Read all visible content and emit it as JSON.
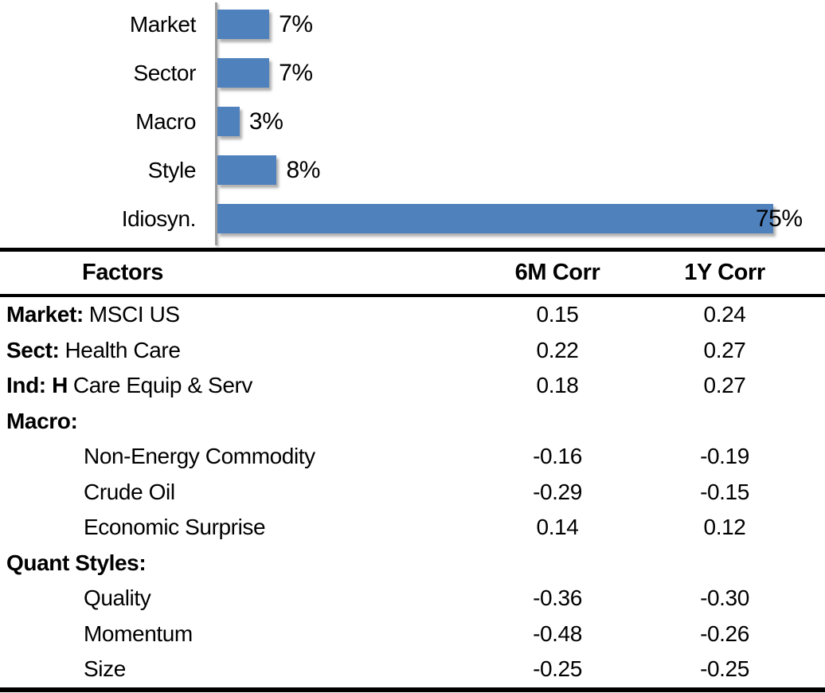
{
  "chart_data": [
    {
      "type": "bar",
      "orientation": "horizontal",
      "title": "",
      "xlabel": "",
      "ylabel": "",
      "categories": [
        "Market",
        "Sector",
        "Macro",
        "Style",
        "Idiosyn."
      ],
      "values": [
        7,
        7,
        3,
        8,
        75
      ],
      "value_labels": [
        "7%",
        "7%",
        "3%",
        "8%",
        "75%"
      ],
      "xlim": [
        0,
        82
      ],
      "grid": false,
      "legend": false,
      "bar_color": "#4F81BD",
      "axis_color": "#9c9c9c"
    },
    {
      "type": "table",
      "columns": [
        "Factors",
        "6M Corr",
        "1Y Corr"
      ],
      "rows": [
        {
          "prefix": "Market:",
          "label": "MSCI US",
          "indent": false,
          "corr_6m": "0.15",
          "corr_1y": "0.24"
        },
        {
          "prefix": "Sect:",
          "label": "Health Care",
          "indent": false,
          "corr_6m": "0.22",
          "corr_1y": "0.27"
        },
        {
          "prefix": "Ind: H",
          "label": "Care Equip & Serv",
          "indent": false,
          "corr_6m": "0.18",
          "corr_1y": "0.27"
        },
        {
          "prefix": "Macro:",
          "label": "",
          "indent": false,
          "corr_6m": "",
          "corr_1y": ""
        },
        {
          "prefix": "",
          "label": "Non-Energy Commodity",
          "indent": true,
          "corr_6m": "-0.16",
          "corr_1y": "-0.19"
        },
        {
          "prefix": "",
          "label": "Crude Oil",
          "indent": true,
          "corr_6m": "-0.29",
          "corr_1y": "-0.15"
        },
        {
          "prefix": "",
          "label": "Economic Surprise",
          "indent": true,
          "corr_6m": "0.14",
          "corr_1y": "0.12"
        },
        {
          "prefix": "Quant Styles:",
          "label": "",
          "indent": false,
          "corr_6m": "",
          "corr_1y": ""
        },
        {
          "prefix": "",
          "label": "Quality",
          "indent": true,
          "corr_6m": "-0.36",
          "corr_1y": "-0.30"
        },
        {
          "prefix": "",
          "label": "Momentum",
          "indent": true,
          "corr_6m": "-0.48",
          "corr_1y": "-0.26"
        },
        {
          "prefix": "",
          "label": "Size",
          "indent": true,
          "corr_6m": "-0.25",
          "corr_1y": "-0.25"
        }
      ]
    }
  ]
}
